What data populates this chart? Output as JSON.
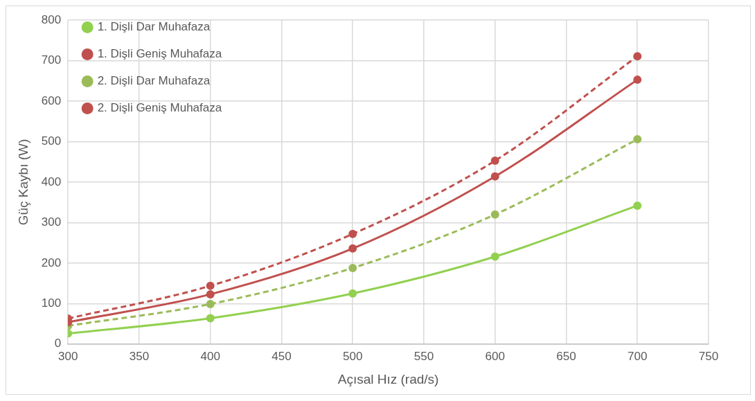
{
  "chart_data": {
    "type": "line",
    "xlabel": "Açısal Hız (rad/s)",
    "ylabel": "Güç Kaybı (W)",
    "x": [
      300,
      400,
      500,
      600,
      700
    ],
    "series": [
      {
        "name": "1. Dişli Dar Muhafaza",
        "color": "#92d050",
        "line_style": "solid",
        "values": [
          26,
          64,
          125,
          216,
          342
        ]
      },
      {
        "name": "1. Dişli Geniş Muhafaza",
        "color": "#c0504d",
        "line_style": "solid",
        "values": [
          54,
          123,
          236,
          414,
          653
        ]
      },
      {
        "name": "2. Dişli Dar Muhafaza",
        "color": "#9bbb59",
        "line_style": "dashed",
        "values": [
          45,
          99,
          188,
          320,
          506
        ]
      },
      {
        "name": "2. Dişli Geniş Muhafaza",
        "color": "#c0504d",
        "line_style": "dashed",
        "values": [
          63,
          144,
          272,
          453,
          711
        ]
      }
    ],
    "xlim": [
      300,
      750
    ],
    "xticks": [
      300,
      350,
      400,
      450,
      500,
      550,
      600,
      650,
      700,
      750
    ],
    "ylim": [
      0,
      800
    ],
    "yticks": [
      0,
      100,
      200,
      300,
      400,
      500,
      600,
      700,
      800
    ],
    "grid": true,
    "legend": "top left",
    "marker": "circle"
  }
}
